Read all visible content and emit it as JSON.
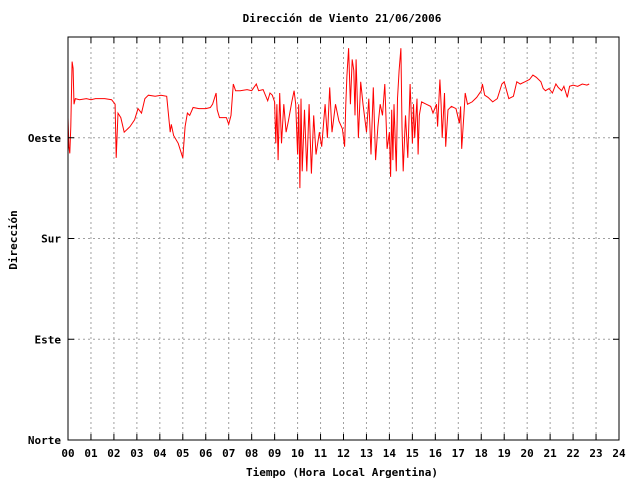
{
  "chart_data": {
    "type": "line",
    "title": "Dirección de Viento 21/06/2006",
    "xlabel": "Tiempo (Hora Local Argentina)",
    "ylabel": "Dirección",
    "xlim": [
      0,
      24
    ],
    "ylim": [
      0,
      360
    ],
    "grid": true,
    "x_ticks": [
      {
        "value": 0,
        "label": "00"
      },
      {
        "value": 1,
        "label": "01"
      },
      {
        "value": 2,
        "label": "02"
      },
      {
        "value": 3,
        "label": "03"
      },
      {
        "value": 4,
        "label": "04"
      },
      {
        "value": 5,
        "label": "05"
      },
      {
        "value": 6,
        "label": "06"
      },
      {
        "value": 7,
        "label": "07"
      },
      {
        "value": 8,
        "label": "08"
      },
      {
        "value": 9,
        "label": "09"
      },
      {
        "value": 10,
        "label": "10"
      },
      {
        "value": 11,
        "label": "11"
      },
      {
        "value": 12,
        "label": "12"
      },
      {
        "value": 13,
        "label": "13"
      },
      {
        "value": 14,
        "label": "14"
      },
      {
        "value": 15,
        "label": "15"
      },
      {
        "value": 16,
        "label": "16"
      },
      {
        "value": 17,
        "label": "17"
      },
      {
        "value": 18,
        "label": "18"
      },
      {
        "value": 19,
        "label": "19"
      },
      {
        "value": 20,
        "label": "20"
      },
      {
        "value": 21,
        "label": "21"
      },
      {
        "value": 22,
        "label": "22"
      },
      {
        "value": 23,
        "label": "23"
      },
      {
        "value": 24,
        "label": "24"
      }
    ],
    "y_ticks": [
      {
        "value": 0,
        "label": "Norte"
      },
      {
        "value": 90,
        "label": "Este"
      },
      {
        "value": 180,
        "label": "Sur"
      },
      {
        "value": 270,
        "label": "Oeste"
      }
    ],
    "series": [
      {
        "color": "#ff0000",
        "points": [
          [
            0.0,
            288
          ],
          [
            0.04,
            262
          ],
          [
            0.08,
            256
          ],
          [
            0.12,
            280
          ],
          [
            0.18,
            338
          ],
          [
            0.22,
            332
          ],
          [
            0.26,
            300
          ],
          [
            0.32,
            305
          ],
          [
            0.5,
            304
          ],
          [
            0.8,
            305
          ],
          [
            1.0,
            304
          ],
          [
            1.2,
            305
          ],
          [
            1.6,
            305
          ],
          [
            1.9,
            304
          ],
          [
            2.05,
            300
          ],
          [
            2.1,
            252
          ],
          [
            2.18,
            292
          ],
          [
            2.3,
            288
          ],
          [
            2.45,
            275
          ],
          [
            2.7,
            280
          ],
          [
            2.9,
            286
          ],
          [
            3.05,
            296
          ],
          [
            3.2,
            292
          ],
          [
            3.35,
            305
          ],
          [
            3.5,
            308
          ],
          [
            3.8,
            307
          ],
          [
            4.05,
            308
          ],
          [
            4.3,
            307
          ],
          [
            4.45,
            275
          ],
          [
            4.5,
            282
          ],
          [
            4.6,
            272
          ],
          [
            4.8,
            265
          ],
          [
            5.0,
            252
          ],
          [
            5.1,
            280
          ],
          [
            5.2,
            292
          ],
          [
            5.3,
            290
          ],
          [
            5.45,
            297
          ],
          [
            5.7,
            296
          ],
          [
            6.0,
            296
          ],
          [
            6.2,
            297
          ],
          [
            6.3,
            300
          ],
          [
            6.45,
            310
          ],
          [
            6.5,
            295
          ],
          [
            6.6,
            288
          ],
          [
            6.9,
            288
          ],
          [
            7.0,
            282
          ],
          [
            7.1,
            290
          ],
          [
            7.2,
            318
          ],
          [
            7.3,
            312
          ],
          [
            7.5,
            312
          ],
          [
            7.8,
            313
          ],
          [
            8.0,
            312
          ],
          [
            8.2,
            318
          ],
          [
            8.3,
            312
          ],
          [
            8.5,
            313
          ],
          [
            8.7,
            303
          ],
          [
            8.8,
            310
          ],
          [
            8.9,
            308
          ],
          [
            9.0,
            302
          ],
          [
            9.05,
            265
          ],
          [
            9.1,
            300
          ],
          [
            9.15,
            250
          ],
          [
            9.22,
            310
          ],
          [
            9.3,
            265
          ],
          [
            9.4,
            300
          ],
          [
            9.5,
            275
          ],
          [
            9.6,
            285
          ],
          [
            9.75,
            302
          ],
          [
            9.85,
            312
          ],
          [
            9.92,
            300
          ],
          [
            10.0,
            255
          ],
          [
            10.05,
            300
          ],
          [
            10.1,
            225
          ],
          [
            10.15,
            305
          ],
          [
            10.2,
            240
          ],
          [
            10.3,
            295
          ],
          [
            10.4,
            240
          ],
          [
            10.5,
            300
          ],
          [
            10.6,
            238
          ],
          [
            10.7,
            290
          ],
          [
            10.8,
            255
          ],
          [
            10.95,
            275
          ],
          [
            11.05,
            262
          ],
          [
            11.2,
            300
          ],
          [
            11.3,
            270
          ],
          [
            11.4,
            315
          ],
          [
            11.5,
            275
          ],
          [
            11.65,
            300
          ],
          [
            11.8,
            285
          ],
          [
            11.95,
            278
          ],
          [
            12.05,
            262
          ],
          [
            12.1,
            300
          ],
          [
            12.15,
            325
          ],
          [
            12.22,
            350
          ],
          [
            12.3,
            300
          ],
          [
            12.38,
            340
          ],
          [
            12.45,
            330
          ],
          [
            12.5,
            290
          ],
          [
            12.55,
            340
          ],
          [
            12.65,
            270
          ],
          [
            12.75,
            320
          ],
          [
            12.85,
            300
          ],
          [
            13.0,
            275
          ],
          [
            13.1,
            305
          ],
          [
            13.2,
            255
          ],
          [
            13.3,
            315
          ],
          [
            13.4,
            250
          ],
          [
            13.5,
            280
          ],
          [
            13.6,
            300
          ],
          [
            13.7,
            290
          ],
          [
            13.8,
            318
          ],
          [
            13.9,
            260
          ],
          [
            14.0,
            275
          ],
          [
            14.05,
            235
          ],
          [
            14.1,
            295
          ],
          [
            14.15,
            250
          ],
          [
            14.2,
            300
          ],
          [
            14.3,
            240
          ],
          [
            14.35,
            305
          ],
          [
            14.42,
            330
          ],
          [
            14.5,
            350
          ],
          [
            14.55,
            280
          ],
          [
            14.6,
            240
          ],
          [
            14.7,
            290
          ],
          [
            14.8,
            252
          ],
          [
            14.9,
            318
          ],
          [
            15.0,
            265
          ],
          [
            15.05,
            300
          ],
          [
            15.1,
            270
          ],
          [
            15.2,
            305
          ],
          [
            15.25,
            255
          ],
          [
            15.3,
            290
          ],
          [
            15.4,
            302
          ],
          [
            15.6,
            300
          ],
          [
            15.8,
            298
          ],
          [
            15.9,
            292
          ],
          [
            16.05,
            300
          ],
          [
            16.1,
            280
          ],
          [
            16.2,
            322
          ],
          [
            16.25,
            300
          ],
          [
            16.3,
            270
          ],
          [
            16.4,
            310
          ],
          [
            16.45,
            262
          ],
          [
            16.55,
            295
          ],
          [
            16.7,
            298
          ],
          [
            16.9,
            296
          ],
          [
            17.05,
            283
          ],
          [
            17.1,
            298
          ],
          [
            17.15,
            260
          ],
          [
            17.25,
            292
          ],
          [
            17.3,
            310
          ],
          [
            17.4,
            300
          ],
          [
            17.6,
            302
          ],
          [
            17.8,
            306
          ],
          [
            18.0,
            312
          ],
          [
            18.05,
            318
          ],
          [
            18.15,
            308
          ],
          [
            18.3,
            306
          ],
          [
            18.5,
            302
          ],
          [
            18.7,
            305
          ],
          [
            18.9,
            318
          ],
          [
            19.0,
            320
          ],
          [
            19.2,
            305
          ],
          [
            19.4,
            307
          ],
          [
            19.55,
            320
          ],
          [
            19.7,
            318
          ],
          [
            19.9,
            320
          ],
          [
            20.1,
            322
          ],
          [
            20.25,
            326
          ],
          [
            20.4,
            324
          ],
          [
            20.6,
            320
          ],
          [
            20.7,
            314
          ],
          [
            20.8,
            312
          ],
          [
            20.95,
            314
          ],
          [
            21.1,
            310
          ],
          [
            21.25,
            318
          ],
          [
            21.35,
            315
          ],
          [
            21.5,
            312
          ],
          [
            21.6,
            316
          ],
          [
            21.75,
            306
          ],
          [
            21.85,
            316
          ],
          [
            22.0,
            317
          ],
          [
            22.2,
            316
          ],
          [
            22.4,
            318
          ],
          [
            22.6,
            317
          ],
          [
            22.7,
            318
          ]
        ]
      }
    ]
  }
}
